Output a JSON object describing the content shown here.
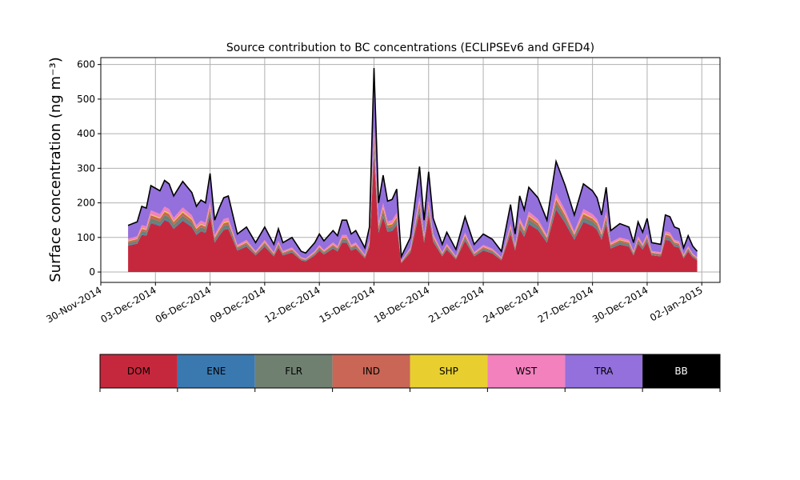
{
  "chart_data": {
    "type": "area",
    "stacked": true,
    "title": "Source contribution to BC concentrations (ECLIPSEv6 and GFED4)",
    "ylabel": "Surface concentration (ng m⁻³)",
    "xlabel": "",
    "xlim": [
      "2014-11-30",
      "2015-01-03"
    ],
    "ylim": [
      -30,
      620
    ],
    "grid": true,
    "x_ticks": [
      "30-Nov-2014",
      "03-Dec-2014",
      "06-Dec-2014",
      "09-Dec-2014",
      "12-Dec-2014",
      "15-Dec-2014",
      "18-Dec-2014",
      "21-Dec-2014",
      "24-Dec-2014",
      "27-Dec-2014",
      "30-Dec-2014",
      "02-Jan-2015"
    ],
    "y_ticks": [
      0,
      100,
      200,
      300,
      400,
      500,
      600
    ],
    "total_profile": [
      [
        "2014-12-01 12:00",
        135
      ],
      [
        "2014-12-02 00:00",
        145
      ],
      [
        "2014-12-02 06:00",
        190
      ],
      [
        "2014-12-02 12:00",
        185
      ],
      [
        "2014-12-02 18:00",
        250
      ],
      [
        "2014-12-03 06:00",
        235
      ],
      [
        "2014-12-03 12:00",
        265
      ],
      [
        "2014-12-03 18:00",
        255
      ],
      [
        "2014-12-04 00:00",
        220
      ],
      [
        "2014-12-04 12:00",
        262
      ],
      [
        "2014-12-05 00:00",
        230
      ],
      [
        "2014-12-05 06:00",
        190
      ],
      [
        "2014-12-05 12:00",
        208
      ],
      [
        "2014-12-05 18:00",
        200
      ],
      [
        "2014-12-06 00:00",
        285
      ],
      [
        "2014-12-06 06:00",
        150
      ],
      [
        "2014-12-06 12:00",
        185
      ],
      [
        "2014-12-06 18:00",
        215
      ],
      [
        "2014-12-07 00:00",
        220
      ],
      [
        "2014-12-07 12:00",
        110
      ],
      [
        "2014-12-08 00:00",
        130
      ],
      [
        "2014-12-08 12:00",
        85
      ],
      [
        "2014-12-09 00:00",
        130
      ],
      [
        "2014-12-09 12:00",
        80
      ],
      [
        "2014-12-09 18:00",
        125
      ],
      [
        "2014-12-10 00:00",
        85
      ],
      [
        "2014-12-10 12:00",
        100
      ],
      [
        "2014-12-11 00:00",
        60
      ],
      [
        "2014-12-11 06:00",
        55
      ],
      [
        "2014-12-11 18:00",
        85
      ],
      [
        "2014-12-12 00:00",
        110
      ],
      [
        "2014-12-12 06:00",
        90
      ],
      [
        "2014-12-12 18:00",
        120
      ],
      [
        "2014-12-13 00:00",
        105
      ],
      [
        "2014-12-13 06:00",
        150
      ],
      [
        "2014-12-13 12:00",
        150
      ],
      [
        "2014-12-13 18:00",
        110
      ],
      [
        "2014-12-14 00:00",
        120
      ],
      [
        "2014-12-14 06:00",
        95
      ],
      [
        "2014-12-14 12:00",
        70
      ],
      [
        "2014-12-14 18:00",
        130
      ],
      [
        "2014-12-15 00:00",
        590
      ],
      [
        "2014-12-15 06:00",
        200
      ],
      [
        "2014-12-15 12:00",
        280
      ],
      [
        "2014-12-15 18:00",
        205
      ],
      [
        "2014-12-16 00:00",
        210
      ],
      [
        "2014-12-16 06:00",
        240
      ],
      [
        "2014-12-16 12:00",
        45
      ],
      [
        "2014-12-17 00:00",
        100
      ],
      [
        "2014-12-17 12:00",
        305
      ],
      [
        "2014-12-17 18:00",
        150
      ],
      [
        "2014-12-18 00:00",
        290
      ],
      [
        "2014-12-18 06:00",
        155
      ],
      [
        "2014-12-18 18:00",
        80
      ],
      [
        "2014-12-19 00:00",
        115
      ],
      [
        "2014-12-19 12:00",
        65
      ],
      [
        "2014-12-20 00:00",
        160
      ],
      [
        "2014-12-20 12:00",
        80
      ],
      [
        "2014-12-21 00:00",
        110
      ],
      [
        "2014-12-21 12:00",
        95
      ],
      [
        "2014-12-22 00:00",
        60
      ],
      [
        "2014-12-22 12:00",
        195
      ],
      [
        "2014-12-22 18:00",
        110
      ],
      [
        "2014-12-23 00:00",
        220
      ],
      [
        "2014-12-23 06:00",
        180
      ],
      [
        "2014-12-23 12:00",
        245
      ],
      [
        "2014-12-24 00:00",
        215
      ],
      [
        "2014-12-24 12:00",
        150
      ],
      [
        "2014-12-25 00:00",
        320
      ],
      [
        "2014-12-25 12:00",
        250
      ],
      [
        "2014-12-26 00:00",
        165
      ],
      [
        "2014-12-26 12:00",
        255
      ],
      [
        "2014-12-27 00:00",
        235
      ],
      [
        "2014-12-27 06:00",
        215
      ],
      [
        "2014-12-27 12:00",
        165
      ],
      [
        "2014-12-27 18:00",
        245
      ],
      [
        "2014-12-28 00:00",
        120
      ],
      [
        "2014-12-28 12:00",
        140
      ],
      [
        "2014-12-29 00:00",
        130
      ],
      [
        "2014-12-29 06:00",
        85
      ],
      [
        "2014-12-29 12:00",
        145
      ],
      [
        "2014-12-29 18:00",
        115
      ],
      [
        "2014-12-30 00:00",
        155
      ],
      [
        "2014-12-30 06:00",
        85
      ],
      [
        "2014-12-30 18:00",
        80
      ],
      [
        "2014-12-31 00:00",
        165
      ],
      [
        "2014-12-31 06:00",
        160
      ],
      [
        "2014-12-31 12:00",
        130
      ],
      [
        "2014-12-31 18:00",
        125
      ],
      [
        "2015-01-01 00:00",
        70
      ],
      [
        "2015-01-01 06:00",
        105
      ],
      [
        "2015-01-01 12:00",
        75
      ],
      [
        "2015-01-01 18:00",
        60
      ]
    ],
    "series": [
      {
        "name": "DOM",
        "color": "#c5283d",
        "share": 0.565
      },
      {
        "name": "ENE",
        "color": "#3a78b0",
        "share": 0.012
      },
      {
        "name": "FLR",
        "color": "#6f8070",
        "share": 0.045
      },
      {
        "name": "IND",
        "color": "#c96656",
        "share": 0.035
      },
      {
        "name": "SHP",
        "color": "#e8cf2f",
        "share": 0.012
      },
      {
        "name": "WST",
        "color": "#f281be",
        "share": 0.045
      },
      {
        "name": "TRA",
        "color": "#9370db",
        "share": 0.276
      },
      {
        "name": "BB",
        "color": "#000000",
        "share": 0.01
      }
    ],
    "legend": {
      "placement": "below",
      "entries": [
        "DOM",
        "ENE",
        "FLR",
        "IND",
        "SHP",
        "WST",
        "TRA",
        "BB"
      ]
    }
  }
}
